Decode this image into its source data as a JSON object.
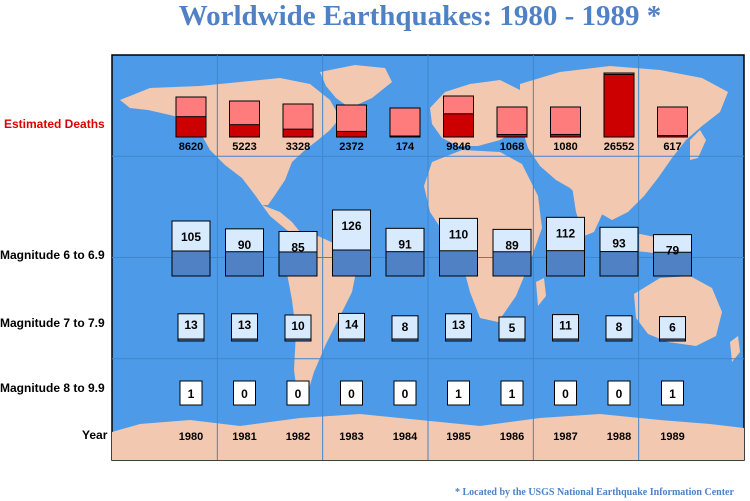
{
  "title": "Worldwide Earthquakes: 1980 - 1989 *",
  "footnote": "* Located by the USGS National Earthquake Information Center",
  "row_labels": {
    "deaths": "Estimated Deaths",
    "mag6": "Magnitude 6 to 6.9",
    "mag7": "Magnitude 7 to 7.9",
    "mag8": "Magnitude 8 to 9.9",
    "year": "Year"
  },
  "colors": {
    "ocean": "#4d9be8",
    "land": "#f2c9b0",
    "deaths_box": "#ff7c7c",
    "deaths_fill": "#cc0000",
    "deaths_label": "#dd0000",
    "mag_box": "#d8eafe",
    "mag_fill": "#4f81c4",
    "title": "#4f81c4"
  },
  "chart_data": {
    "type": "table",
    "categories": [
      "1980",
      "1981",
      "1982",
      "1983",
      "1984",
      "1985",
      "1986",
      "1987",
      "1988",
      "1989"
    ],
    "series": [
      {
        "name": "Estimated Deaths",
        "values": [
          8620,
          5223,
          3328,
          2372,
          174,
          9846,
          1068,
          1080,
          26552,
          617
        ]
      },
      {
        "name": "Magnitude 6 to 6.9",
        "values": [
          105,
          90,
          85,
          126,
          91,
          110,
          89,
          112,
          93,
          79
        ]
      },
      {
        "name": "Magnitude 7 to 7.9",
        "values": [
          13,
          13,
          10,
          14,
          8,
          13,
          5,
          11,
          8,
          6
        ]
      },
      {
        "name": "Magnitude 8 to 9.9",
        "values": [
          1,
          0,
          0,
          0,
          0,
          1,
          1,
          0,
          0,
          1
        ]
      }
    ]
  }
}
